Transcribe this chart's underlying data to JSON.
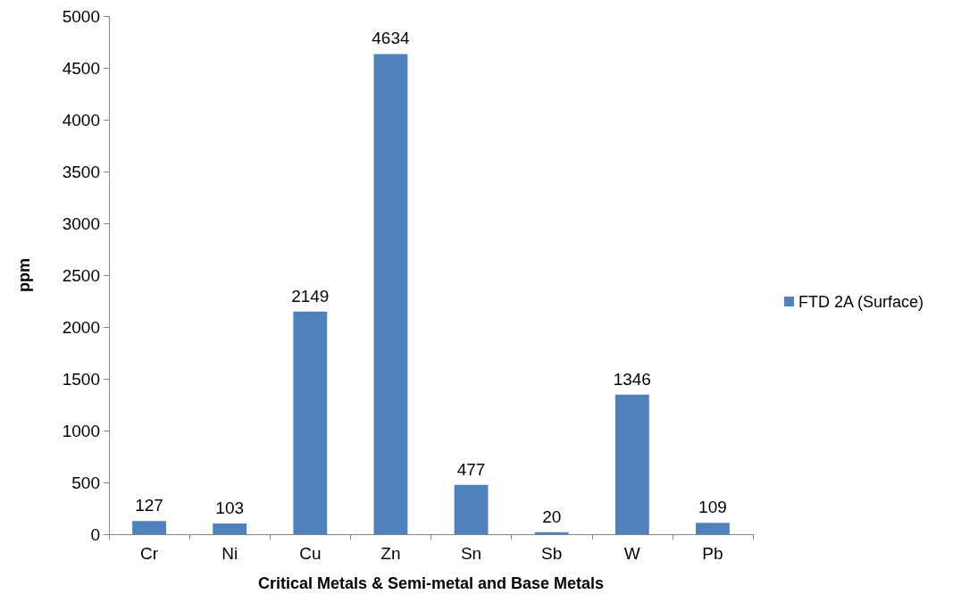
{
  "chart_data": {
    "type": "bar",
    "xlabel": "Critical Metals & Semi-metal and Base Metals",
    "ylabel": "ppm",
    "categories": [
      "Cr",
      "Ni",
      "Cu",
      "Zn",
      "Sn",
      "Sb",
      "W",
      "Pb"
    ],
    "series": [
      {
        "name": "FTD 2A (Surface)",
        "color": "#4f81bd",
        "values": [
          127,
          103,
          2149,
          4634,
          477,
          20,
          1346,
          109
        ]
      }
    ],
    "ylim": [
      0,
      5000
    ],
    "yticks": [
      0,
      500,
      1000,
      1500,
      2000,
      2500,
      3000,
      3500,
      4000,
      4500,
      5000
    ],
    "grid": false,
    "legend": "right",
    "data_labels": true
  }
}
